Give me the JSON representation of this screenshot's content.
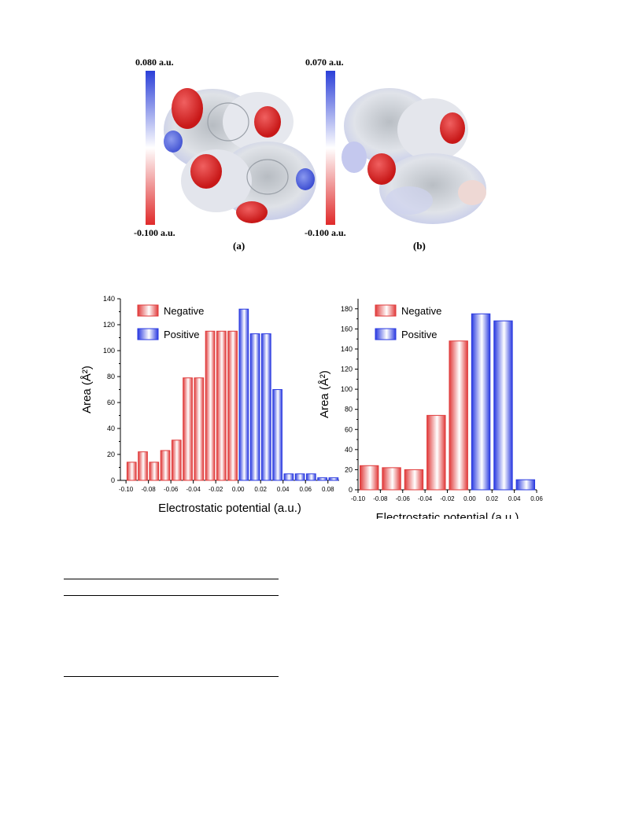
{
  "figure_top": {
    "panels": [
      {
        "label": "(a)",
        "scale_max": "0.080 a.u.",
        "scale_min": "-0.100 a.u."
      },
      {
        "label": "(b)",
        "scale_max": "0.070 a.u.",
        "scale_min": "-0.100 a.u."
      }
    ],
    "colors": {
      "positive": "#2b3fd8",
      "negative": "#e02a2a",
      "neutral": "#ffffff"
    }
  },
  "chart_data": [
    {
      "type": "bar",
      "xlabel": "Electrostatic potential (a.u.)",
      "ylabel": "Area (Å²)",
      "xlim": [
        -0.105,
        0.09
      ],
      "ylim": [
        0,
        140
      ],
      "xticks": [
        "-0.10",
        "-0.08",
        "-0.06",
        "-0.04",
        "-0.02",
        "0.00",
        "0.02",
        "0.04",
        "0.06",
        "0.08"
      ],
      "yticks": [
        "0",
        "20",
        "40",
        "60",
        "80",
        "100",
        "120",
        "140"
      ],
      "bin_width": 0.01,
      "legend_position": "top-left",
      "series": [
        {
          "name": "Negative",
          "color": "#e03a3a",
          "x": [
            -0.095,
            -0.085,
            -0.075,
            -0.065,
            -0.055,
            -0.045,
            -0.035,
            -0.025,
            -0.015,
            -0.005
          ],
          "values": [
            14,
            22,
            14,
            23,
            31,
            79,
            79,
            115,
            115,
            115
          ]
        },
        {
          "name": "Positive",
          "color": "#2a3ae0",
          "x": [
            0.005,
            0.015,
            0.025,
            0.035,
            0.045,
            0.055,
            0.065,
            0.075,
            0.085
          ],
          "values": [
            132,
            113,
            113,
            70,
            5,
            5,
            5,
            2,
            2
          ]
        }
      ]
    },
    {
      "type": "bar",
      "xlabel": "Electrostatic potential (a.u.)",
      "ylabel": "Area (Å²)",
      "xlim": [
        -0.1,
        0.06
      ],
      "ylim": [
        0,
        190
      ],
      "xticks": [
        "-0.10",
        "-0.08",
        "-0.06",
        "-0.04",
        "-0.02",
        "0.00",
        "0.02",
        "0.04",
        "0.06"
      ],
      "yticks": [
        "0",
        "20",
        "40",
        "60",
        "80",
        "100",
        "120",
        "140",
        "160",
        "180"
      ],
      "legend_position": "top-left",
      "series": [
        {
          "name": "Negative",
          "color": "#e03a3a",
          "x": [
            -0.09,
            -0.07,
            -0.05,
            -0.03,
            -0.01
          ],
          "values": [
            24,
            22,
            20,
            74,
            148
          ]
        },
        {
          "name": "Positive",
          "color": "#2a3ae0",
          "x": [
            0.01,
            0.03,
            0.05
          ],
          "values": [
            175,
            168,
            10
          ]
        }
      ]
    }
  ]
}
